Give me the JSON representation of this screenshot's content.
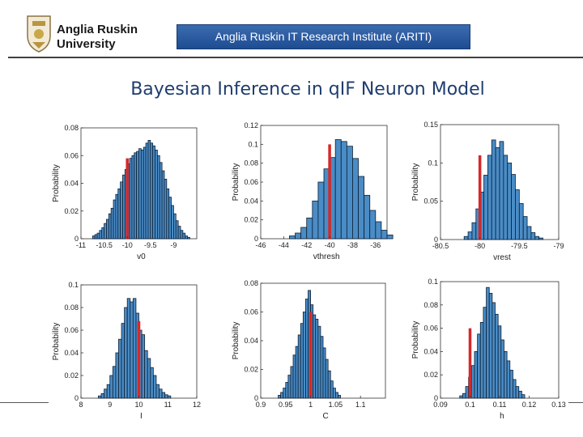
{
  "header": {
    "logo_line1": "Anglia Ruskin",
    "logo_line2": "University",
    "banner": "Anglia Ruskin IT Research Institute (ARITI)",
    "title": "Bayesian Inference in qIF Neuron Model"
  },
  "colors": {
    "bar": "#4a8cc6",
    "bar_edge": "#0d1f33",
    "true_value": "#d62828"
  },
  "chart_data": [
    {
      "type": "bar",
      "xlabel": "v0",
      "ylabel": "Probability",
      "xlim": [
        -11,
        -8.5
      ],
      "ylim": [
        0,
        0.08
      ],
      "xticks": [
        -11,
        -10.5,
        -10,
        -9.5,
        -9
      ],
      "xticklabels": [
        "-11",
        "-10.5",
        "-10",
        "-9.5",
        "-9"
      ],
      "yticks": [
        0,
        0.02,
        0.04,
        0.06,
        0.08
      ],
      "yticklabels": [
        "0",
        "0.02",
        "0.04",
        "0.06",
        "0.08"
      ],
      "bin_start": -10.75,
      "bin_width": 0.05,
      "values": [
        0.002,
        0.003,
        0.004,
        0.006,
        0.008,
        0.011,
        0.014,
        0.018,
        0.022,
        0.028,
        0.032,
        0.036,
        0.041,
        0.046,
        0.05,
        0.054,
        0.058,
        0.06,
        0.062,
        0.063,
        0.065,
        0.064,
        0.066,
        0.069,
        0.071,
        0.069,
        0.067,
        0.064,
        0.06,
        0.055,
        0.049,
        0.043,
        0.036,
        0.03,
        0.024,
        0.018,
        0.013,
        0.009,
        0.006,
        0.004,
        0.002,
        0.001
      ],
      "true_value": -10,
      "true_height": 0.058
    },
    {
      "type": "bar",
      "xlabel": "vthresh",
      "ylabel": "Probability",
      "xlim": [
        -46,
        -35
      ],
      "ylim": [
        0,
        0.12
      ],
      "xticks": [
        -46,
        -44,
        -42,
        -40,
        -38,
        -36
      ],
      "xticklabels": [
        "-46",
        "-44",
        "-42",
        "-40",
        "-38",
        "-36"
      ],
      "yticks": [
        0,
        0.02,
        0.04,
        0.06,
        0.08,
        0.1,
        0.12
      ],
      "yticklabels": [
        "0",
        "0.02",
        "0.04",
        "0.06",
        "0.08",
        "0.1",
        "0.12"
      ],
      "bin_start": -43.5,
      "bin_width": 0.5,
      "values": [
        0.003,
        0.006,
        0.012,
        0.022,
        0.04,
        0.06,
        0.074,
        0.086,
        0.105,
        0.103,
        0.098,
        0.085,
        0.066,
        0.046,
        0.03,
        0.018,
        0.009,
        0.004
      ],
      "true_value": -40,
      "true_height": 0.1
    },
    {
      "type": "bar",
      "xlabel": "vrest",
      "ylabel": "Probability",
      "xlim": [
        -80.5,
        -79
      ],
      "ylim": [
        0,
        0.15
      ],
      "xticks": [
        -80.5,
        -80,
        -79.5,
        -79
      ],
      "xticklabels": [
        "-80.5",
        "-80",
        "-79.5",
        "-79"
      ],
      "yticks": [
        0,
        0.05,
        0.1,
        0.15
      ],
      "yticklabels": [
        "0",
        "0.05",
        "0.1",
        "0.15"
      ],
      "bin_start": -80.2,
      "bin_width": 0.05,
      "values": [
        0.004,
        0.01,
        0.022,
        0.04,
        0.062,
        0.084,
        0.11,
        0.13,
        0.12,
        0.128,
        0.11,
        0.1,
        0.085,
        0.065,
        0.047,
        0.03,
        0.017,
        0.009,
        0.004,
        0.002
      ],
      "true_value": -80,
      "true_height": 0.11
    },
    {
      "type": "bar",
      "xlabel": "I",
      "ylabel": "Probability",
      "xlim": [
        8,
        12
      ],
      "ylim": [
        0,
        0.1
      ],
      "xticks": [
        8,
        9,
        10,
        11,
        12
      ],
      "xticklabels": [
        "8",
        "9",
        "10",
        "11",
        "12"
      ],
      "yticks": [
        0,
        0.02,
        0.04,
        0.06,
        0.08,
        0.1
      ],
      "yticklabels": [
        "0",
        "0.02",
        "0.04",
        "0.06",
        "0.08",
        "0.1"
      ],
      "bin_start": 8.6,
      "bin_width": 0.1,
      "values": [
        0.002,
        0.004,
        0.008,
        0.012,
        0.02,
        0.028,
        0.04,
        0.052,
        0.066,
        0.08,
        0.088,
        0.085,
        0.088,
        0.075,
        0.06,
        0.056,
        0.042,
        0.035,
        0.027,
        0.02,
        0.012,
        0.008,
        0.005,
        0.003,
        0.002
      ],
      "true_value": 10,
      "true_height": 0.068
    },
    {
      "type": "bar",
      "xlabel": "C",
      "ylabel": "Probability",
      "xlim": [
        0.9,
        1.15
      ],
      "ylim": [
        0,
        0.08
      ],
      "xticks": [
        0.9,
        0.95,
        1,
        1.05,
        1.1
      ],
      "xticklabels": [
        "0.9",
        "0.95",
        "1",
        "1.05",
        "1.1"
      ],
      "yticks": [
        0,
        0.02,
        0.04,
        0.06,
        0.08
      ],
      "yticklabels": [
        "0",
        "0.02",
        "0.04",
        "0.06",
        "0.08"
      ],
      "bin_start": 0.935,
      "bin_width": 0.005,
      "values": [
        0.002,
        0.004,
        0.007,
        0.011,
        0.016,
        0.022,
        0.03,
        0.036,
        0.044,
        0.052,
        0.06,
        0.069,
        0.075,
        0.065,
        0.058,
        0.055,
        0.05,
        0.043,
        0.035,
        0.027,
        0.019,
        0.012,
        0.007,
        0.004,
        0.002
      ],
      "true_value": 1,
      "true_height": 0.06
    },
    {
      "type": "bar",
      "xlabel": "h",
      "ylabel": "Probability",
      "xlim": [
        0.09,
        0.13
      ],
      "ylim": [
        0,
        0.1
      ],
      "xticks": [
        0.09,
        0.1,
        0.11,
        0.12,
        0.13
      ],
      "xticklabels": [
        "0.09",
        "0.1",
        "0.11",
        "0.12",
        "0.13"
      ],
      "yticks": [
        0,
        0.02,
        0.04,
        0.06,
        0.08,
        0.1
      ],
      "yticklabels": [
        "0",
        "0.02",
        "0.04",
        "0.06",
        "0.08",
        "0.1"
      ],
      "bin_start": 0.0965,
      "bin_width": 0.001,
      "values": [
        0.002,
        0.004,
        0.01,
        0.018,
        0.028,
        0.04,
        0.055,
        0.065,
        0.078,
        0.095,
        0.09,
        0.082,
        0.072,
        0.062,
        0.05,
        0.04,
        0.032,
        0.024,
        0.016,
        0.01,
        0.006,
        0.003
      ],
      "true_value": 0.1,
      "true_height": 0.06
    }
  ]
}
